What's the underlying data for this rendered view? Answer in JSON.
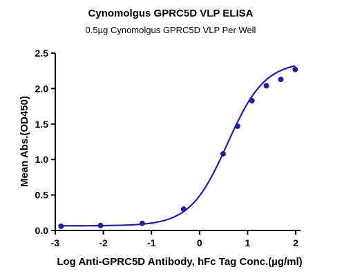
{
  "chart_data": {
    "type": "scatter",
    "title": "Cynomolgus GPRC5D VLP ELISA",
    "subtitle": "0.5µg Cynomolgus GPRC5D VLP Per Well",
    "xlabel": "Log Anti-GPRC5D Antibody, hFc Tag Conc.(µg/ml)",
    "ylabel": "Mean Abs.(OD450)",
    "xlim": [
      -3,
      2
    ],
    "ylim": [
      0,
      2.5
    ],
    "xticks": [
      "-3",
      "-2",
      "-1",
      "0",
      "1",
      "2"
    ],
    "yticks": [
      "0.0",
      "0.5",
      "1.0",
      "1.5",
      "2.0",
      "2.5"
    ],
    "grid": false,
    "legend": "none",
    "color": "#1f1fa0",
    "series": [
      {
        "x": [
          -2.88,
          -2.06,
          -1.19,
          -0.33,
          0.49,
          0.79,
          1.09,
          1.39,
          1.69,
          1.99
        ],
        "y": [
          0.06,
          0.07,
          0.1,
          0.3,
          1.08,
          1.47,
          1.83,
          2.04,
          2.13,
          2.27
        ]
      }
    ],
    "fit_curve": {
      "model": "four-parameter logistic",
      "bottom": 0.065,
      "top": 2.38,
      "logEC50": 0.58,
      "hill": 1.12
    }
  }
}
